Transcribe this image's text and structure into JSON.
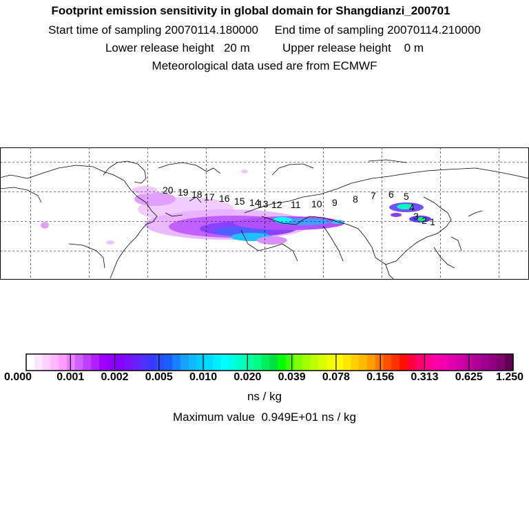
{
  "header": {
    "title": "Footprint emission sensitivity in global domain for Shangdianzi_200701",
    "sampling_line": "Start time of sampling 20070114.180000     End time of sampling 20070114.210000",
    "release_line": "Lower release height   20 m          Upper release height    0 m",
    "met_line": "Meteorological data used are from ECMWF"
  },
  "map": {
    "trajectory_labels": [
      "20",
      "19",
      "18",
      "17",
      "16",
      "15",
      "14",
      "13",
      "12",
      "11",
      "10",
      "9",
      "8",
      "7",
      "6",
      "5",
      "4",
      "3",
      "2",
      "1"
    ],
    "colors": {
      "land_outline": "#000000",
      "grid": "#000000",
      "plume_low": "#e0a0ff",
      "plume_mid": "#8a2be2",
      "plume_high": "#00ffff"
    }
  },
  "colorbar": {
    "tick_labels": [
      "0.000",
      "0.001",
      "0.002",
      "0.005",
      "0.010",
      "0.020",
      "0.039",
      "0.078",
      "0.156",
      "0.313",
      "0.625",
      "1.250"
    ],
    "colors": [
      "#ffffff",
      "#ffe8ff",
      "#ffd0ff",
      "#ffb8ff",
      "#ff9cff",
      "#e880ff",
      "#d060ff",
      "#c040ff",
      "#b020ff",
      "#a000ff",
      "#9400ff",
      "#8800ff",
      "#7a10ff",
      "#6820ff",
      "#5030ff",
      "#3a3aff",
      "#2850ff",
      "#1a60ff",
      "#1a80ff",
      "#1aa0ff",
      "#10b8ff",
      "#00ccff",
      "#00dcff",
      "#00ecff",
      "#00ffff",
      "#00ffe0",
      "#00ffc0",
      "#00ffa0",
      "#00ff80",
      "#00f060",
      "#00e040",
      "#00ff00",
      "#40ff00",
      "#80ff00",
      "#a0ff00",
      "#c0ff00",
      "#d8ff00",
      "#f0ff00",
      "#ffff00",
      "#ffe800",
      "#ffd000",
      "#ffb800",
      "#ff9c00",
      "#ff7800",
      "#ff5000",
      "#ff3000",
      "#ff1000",
      "#ff0040",
      "#ff0070",
      "#ff0090",
      "#ff00a8",
      "#f000b0",
      "#e000b0",
      "#d000a8",
      "#c000a0",
      "#b00098",
      "#a00090",
      "#900080",
      "#800070",
      "#600050"
    ]
  },
  "unit": "ns / kg",
  "max_value_line": "Maximum value  0.949E+01 ns / kg"
}
